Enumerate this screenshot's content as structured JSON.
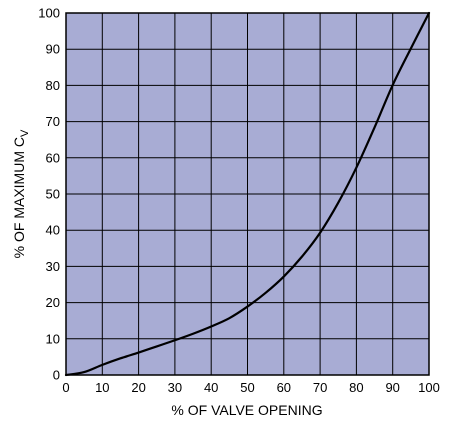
{
  "chart_data": {
    "type": "line",
    "xlabel": "% OF VALVE OPENING",
    "ylabel": {
      "main": "% OF MAXIMUM C",
      "subscript": "V"
    },
    "xlim": [
      0,
      100
    ],
    "ylim": [
      0,
      100
    ],
    "x_ticks": [
      0,
      10,
      20,
      30,
      40,
      50,
      60,
      70,
      80,
      90,
      100
    ],
    "y_ticks": [
      0,
      10,
      20,
      30,
      40,
      50,
      60,
      70,
      80,
      90,
      100
    ],
    "grid": true,
    "plot_background": "#a8acd4",
    "grid_color": "#000000",
    "line_color": "#000000",
    "series": [
      {
        "x": [
          0,
          5,
          10,
          15,
          20,
          25,
          30,
          35,
          40,
          45,
          50,
          55,
          60,
          65,
          70,
          75,
          80,
          85,
          90,
          95,
          100
        ],
        "values": [
          0,
          0.8,
          2.8,
          4.6,
          6.2,
          7.9,
          9.6,
          11.4,
          13.4,
          15.7,
          18.9,
          22.7,
          27.2,
          32.7,
          39.3,
          47.6,
          57.3,
          68.4,
          80.1,
          90.2,
          100
        ]
      }
    ]
  }
}
